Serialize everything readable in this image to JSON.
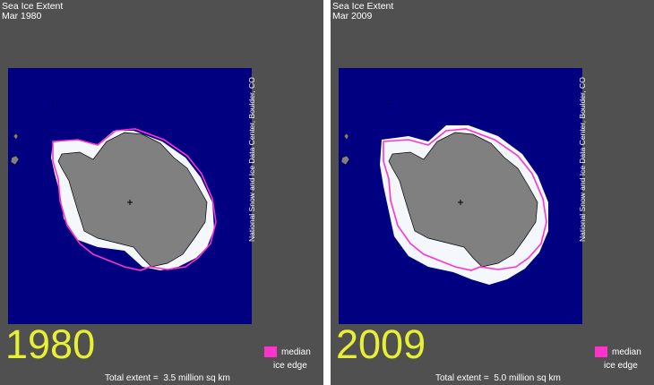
{
  "colors": {
    "background": "#505050",
    "ocean": "#000080",
    "land": "#808080",
    "ice": "#f4f8fc",
    "median_edge": "#ff33cc",
    "year_label": "#e8f033",
    "text": "#ffffff"
  },
  "panels": [
    {
      "title_line1": "Sea Ice Extent",
      "title_line2": "Mar 1980",
      "credit": "National Snow and Ice Data Center, Boulder, CO",
      "year": "1980",
      "legend_line1": "median",
      "legend_line2": "ice edge",
      "extent_label": "Total extent =",
      "extent_value": "3.5 million sq km",
      "total_extent_million_sq_km": 3.5
    },
    {
      "title_line1": "Sea Ice Extent",
      "title_line2": "Mar 2009",
      "credit": "National Snow and Ice Data Center, Boulder, CO",
      "year": "2009",
      "legend_line1": "median",
      "legend_line2": "ice edge",
      "extent_label": "Total extent =",
      "extent_value": "5.0 million sq km",
      "total_extent_million_sq_km": 5.0
    }
  ]
}
